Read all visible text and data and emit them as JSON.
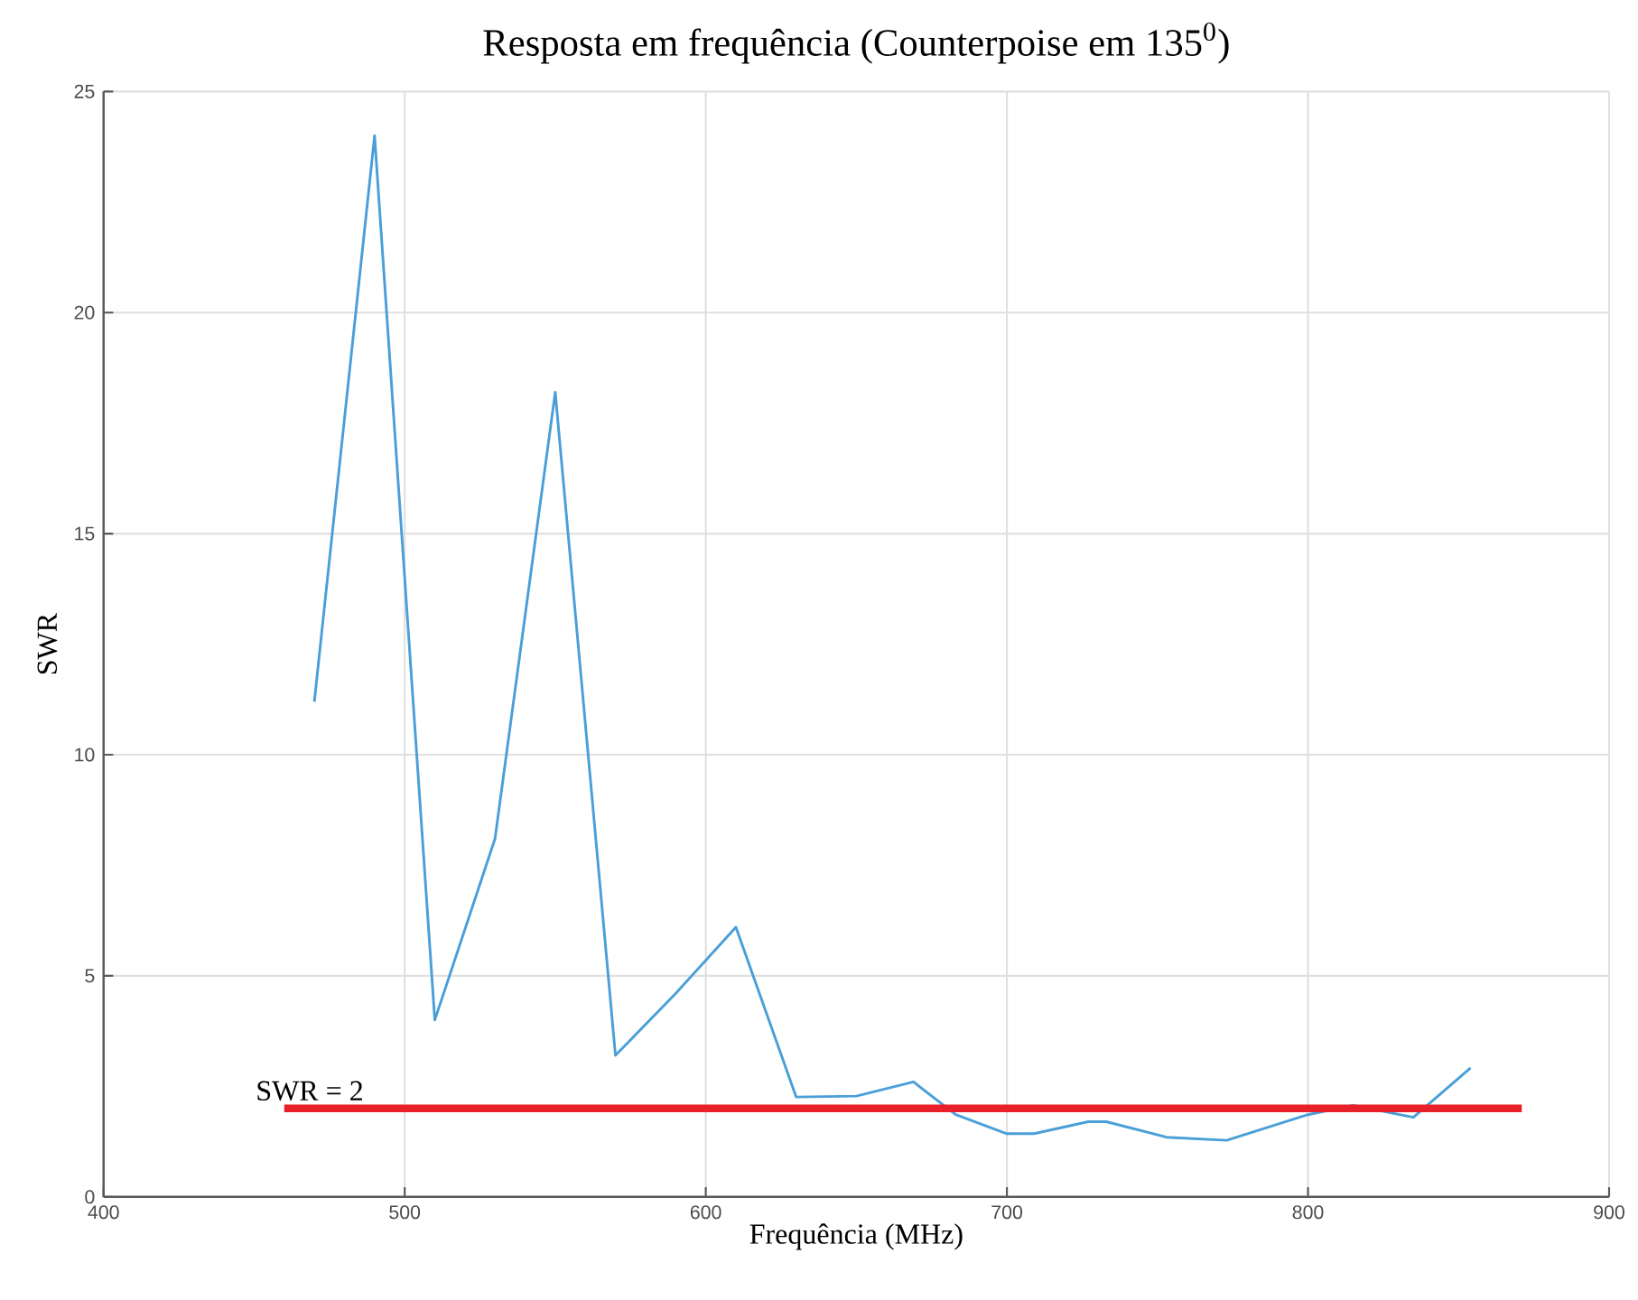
{
  "chart_data": {
    "type": "line",
    "title": "Resposta em frequência (Counterpoise em 135$^{0}$)",
    "xlabel": "Frequência (MHz)",
    "ylabel": "SWR",
    "xlim": [
      400,
      900
    ],
    "ylim": [
      0,
      25
    ],
    "xticks": [
      400,
      500,
      600,
      700,
      800,
      900
    ],
    "yticks": [
      0,
      5,
      10,
      15,
      20,
      25
    ],
    "grid": true,
    "legend": false,
    "marker": "none",
    "line_style": "solid",
    "series": [
      {
        "color": "#4a9fd8",
        "x": [
          470,
          490,
          510,
          530,
          550,
          570,
          590,
          610,
          630,
          650,
          669,
          683,
          700,
          709,
          727,
          733,
          753,
          773,
          800,
          815,
          835,
          854
        ],
        "values": [
          11.2,
          24.0,
          4.0,
          8.1,
          18.2,
          3.2,
          4.6,
          6.1,
          2.26,
          2.28,
          2.6,
          1.86,
          1.43,
          1.43,
          1.7,
          1.7,
          1.35,
          1.28,
          1.86,
          2.07,
          1.8,
          2.92
        ]
      },
      {
        "name": "SWR = 2",
        "color": "#e8202a",
        "x": [
          460,
          871
        ],
        "values": [
          2,
          2
        ]
      }
    ]
  }
}
